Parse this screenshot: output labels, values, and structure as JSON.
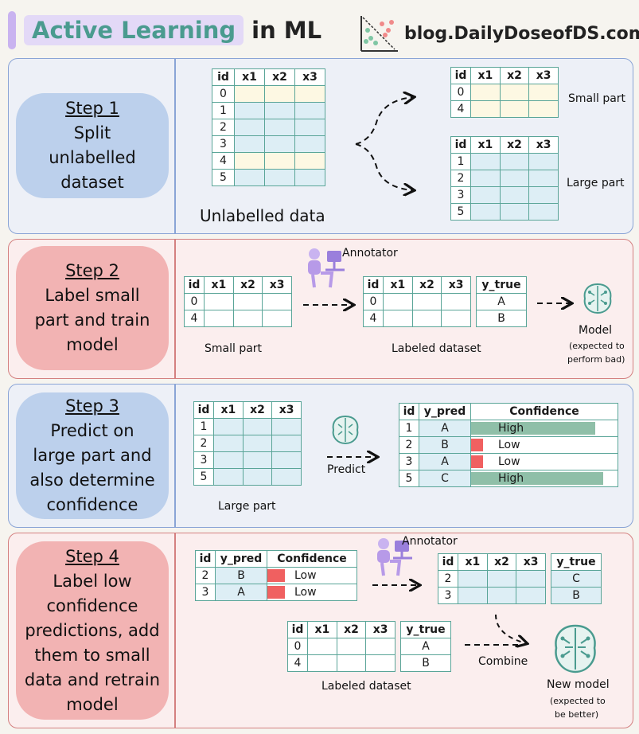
{
  "header": {
    "title_highlight": "Active Learning",
    "title_rest": "in ML",
    "blog": "blog.DailyDoseofDS.com"
  },
  "colors": {
    "teal": "#5aa598",
    "blue_cell": "#ddeef5",
    "yellow_cell": "#fdf8e3",
    "high": "#8fbfa8",
    "low": "#f06060"
  },
  "columns": {
    "id": "id",
    "x1": "x1",
    "x2": "x2",
    "x3": "x3",
    "y_true": "y_true",
    "y_pred": "y_pred",
    "confidence": "Confidence"
  },
  "step1": {
    "title": "Step 1",
    "lines": [
      "Split",
      "unlabelled",
      "dataset"
    ],
    "ids": [
      "0",
      "1",
      "2",
      "3",
      "4",
      "5"
    ],
    "caption": "Unlabelled data",
    "small_ids": [
      "0",
      "4"
    ],
    "small_label": "Small part",
    "large_ids": [
      "1",
      "2",
      "3",
      "5"
    ],
    "large_label": "Large part"
  },
  "step2": {
    "title": "Step 2",
    "lines": [
      "Label small",
      "part and train",
      "model"
    ],
    "ids": [
      "0",
      "4"
    ],
    "left_caption": "Small part",
    "y_true": [
      "A",
      "B"
    ],
    "mid_caption": "Labeled dataset",
    "annotator": "Annotator",
    "model_label": "Model",
    "model_note": [
      "(expected to",
      "perform bad)"
    ]
  },
  "step3": {
    "title": "Step 3",
    "lines": [
      "Predict on",
      "large part and",
      "also determine",
      "confidence"
    ],
    "ids": [
      "1",
      "2",
      "3",
      "5"
    ],
    "caption": "Large part",
    "predict": "Predict",
    "rows": [
      {
        "id": "1",
        "y_pred": "A",
        "conf": "High",
        "level": 0.85
      },
      {
        "id": "2",
        "y_pred": "B",
        "conf": "Low",
        "level": 0.08
      },
      {
        "id": "3",
        "y_pred": "A",
        "conf": "Low",
        "level": 0.08
      },
      {
        "id": "5",
        "y_pred": "C",
        "conf": "High",
        "level": 0.9
      }
    ]
  },
  "step4": {
    "title": "Step 4",
    "lines": [
      "Label low",
      "confidence",
      "predictions, add",
      "them to small",
      "data and retrain",
      "model"
    ],
    "rows": [
      {
        "id": "2",
        "y_pred": "B",
        "conf": "Low",
        "level": 0.2
      },
      {
        "id": "3",
        "y_pred": "A",
        "conf": "Low",
        "level": 0.2
      }
    ],
    "annotator": "Annotator",
    "new_ids": [
      "2",
      "3"
    ],
    "new_y": [
      "C",
      "B"
    ],
    "lab_ids": [
      "0",
      "4"
    ],
    "lab_y": [
      "A",
      "B"
    ],
    "lab_caption": "Labeled dataset",
    "combine": "Combine",
    "model_label": "New model",
    "model_note": [
      "(expected to",
      "be better)"
    ]
  }
}
